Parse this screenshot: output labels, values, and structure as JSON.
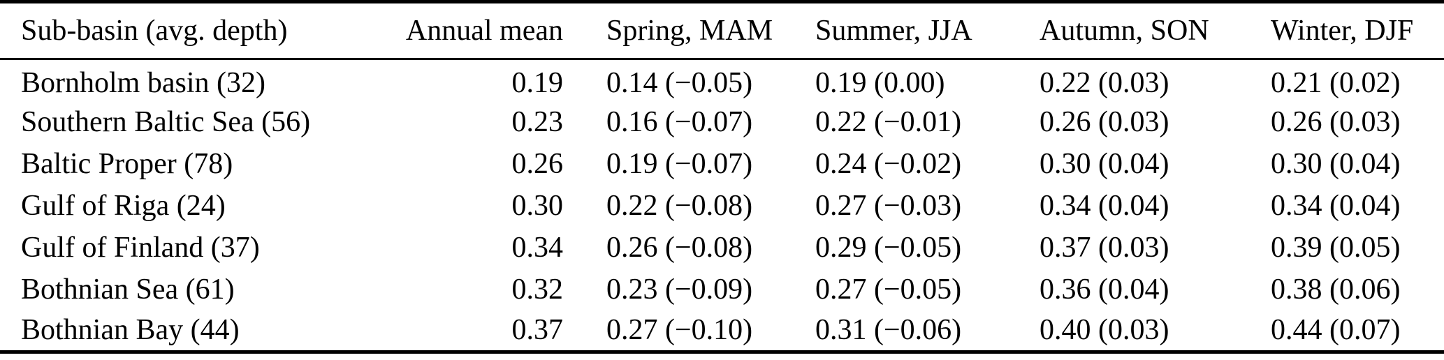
{
  "table": {
    "col_headers": [
      "Sub-basin (avg. depth)",
      "Annual mean",
      "Spring, MAM",
      "Summer, JJA",
      "Autumn, SON",
      "Winter, DJF"
    ],
    "rows": [
      [
        "Bornholm basin (32)",
        "0.19",
        "0.14 (−0.05)",
        "0.19 (0.00)",
        "0.22 (0.03)",
        "0.21 (0.02)"
      ],
      [
        "Southern Baltic Sea (56)",
        "0.23",
        "0.16 (−0.07)",
        "0.22 (−0.01)",
        "0.26 (0.03)",
        "0.26 (0.03)"
      ],
      [
        "Baltic Proper (78)",
        "0.26",
        "0.19 (−0.07)",
        "0.24 (−0.02)",
        "0.30 (0.04)",
        "0.30 (0.04)"
      ],
      [
        "Gulf of Riga (24)",
        "0.30",
        "0.22 (−0.08)",
        "0.27 (−0.03)",
        "0.34 (0.04)",
        "0.34 (0.04)"
      ],
      [
        "Gulf of Finland (37)",
        "0.34",
        "0.26 (−0.08)",
        "0.29 (−0.05)",
        "0.37 (0.03)",
        "0.39 (0.05)"
      ],
      [
        "Bothnian Sea (61)",
        "0.32",
        "0.23 (−0.09)",
        "0.27 (−0.05)",
        "0.36 (0.04)",
        "0.38 (0.06)"
      ],
      [
        "Bothnian Bay (44)",
        "0.37",
        "0.27 (−0.10)",
        "0.31 (−0.06)",
        "0.40 (0.03)",
        "0.44 (0.07)"
      ]
    ],
    "text_color": "#000000",
    "rule_color": "#000000",
    "background_color": "#ffffff"
  }
}
